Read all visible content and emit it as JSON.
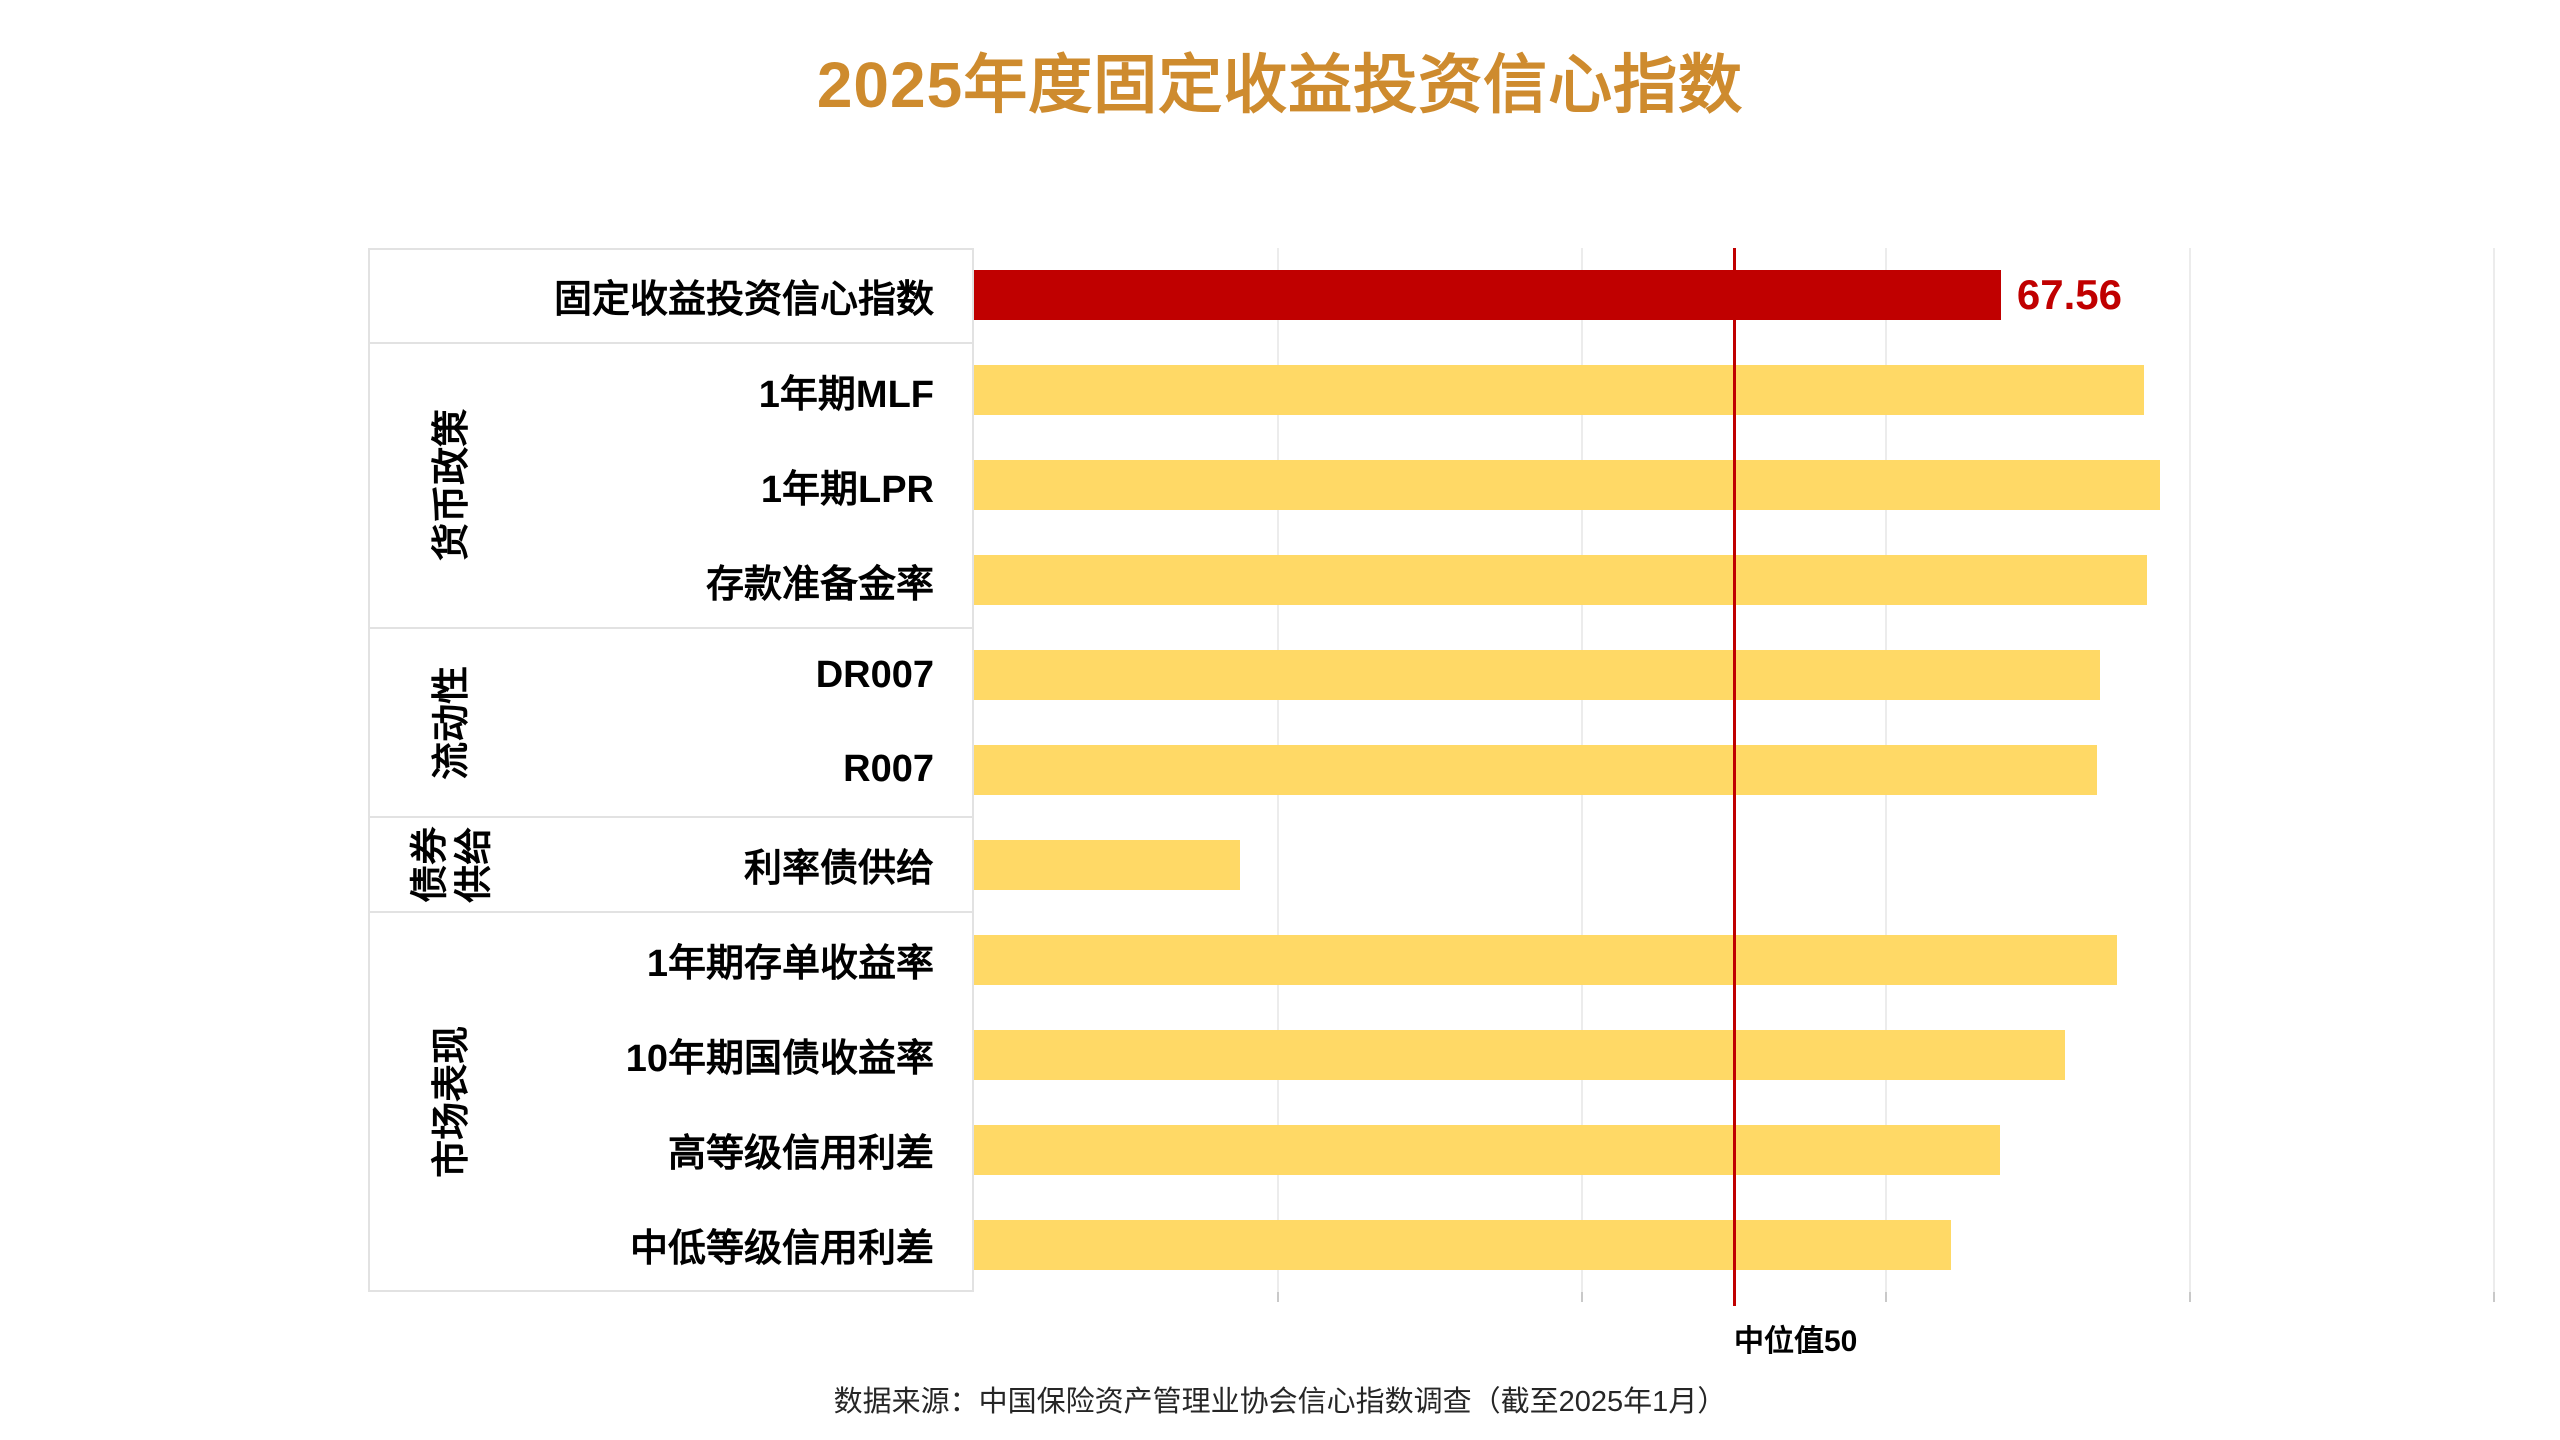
{
  "title": {
    "text": "2025年度固定收益投资信心指数"
  },
  "footer": {
    "text": "数据来源：中国保险资产管理业协会信心指数调查（截至2025年1月）"
  },
  "colors": {
    "title_text": "#CE8B2E",
    "highlight_bar": "#C00000",
    "bar": "#FFD966",
    "median_line": "#C00000",
    "value_label": "#C00000",
    "gridline": "#ECECEC",
    "tick": "#C9C9C9",
    "box_border": "#E2E2E2",
    "separator": "#E2E2E2",
    "label_text": "#000000",
    "footer_text": "#262626"
  },
  "chart_data": {
    "type": "bar",
    "orientation": "horizontal",
    "title": "2025年度固定收益投资信心指数",
    "xlabel": "",
    "ylabel": "",
    "xlim": [
      0,
      100
    ],
    "gridline_values": [
      20,
      40,
      60,
      80,
      100
    ],
    "grid": true,
    "median_line": {
      "value": 50,
      "label": "中位值50"
    },
    "groups": [
      {
        "name": "",
        "rows": [
          {
            "label": "固定收益投资信心指数",
            "value": 67.56,
            "highlight": true,
            "value_label": "67.56"
          }
        ]
      },
      {
        "name": "货币政策",
        "rows": [
          {
            "label": "1年期MLF",
            "value": 77.0
          },
          {
            "label": "1年期LPR",
            "value": 78.0
          },
          {
            "label": "存款准备金率",
            "value": 77.2
          }
        ]
      },
      {
        "name": "流动性",
        "rows": [
          {
            "label": "DR007",
            "value": 74.1
          },
          {
            "label": "R007",
            "value": 73.9
          }
        ]
      },
      {
        "name": "债券供给",
        "rows": [
          {
            "label": "利率债供给",
            "value": 17.5
          }
        ]
      },
      {
        "name": "市场表现",
        "rows": [
          {
            "label": "1年期存单收益率",
            "value": 75.2
          },
          {
            "label": "10年期国债收益率",
            "value": 71.8
          },
          {
            "label": "高等级信用利差",
            "value": 67.5
          },
          {
            "label": "中低等级信用利差",
            "value": 64.3
          }
        ]
      }
    ]
  }
}
